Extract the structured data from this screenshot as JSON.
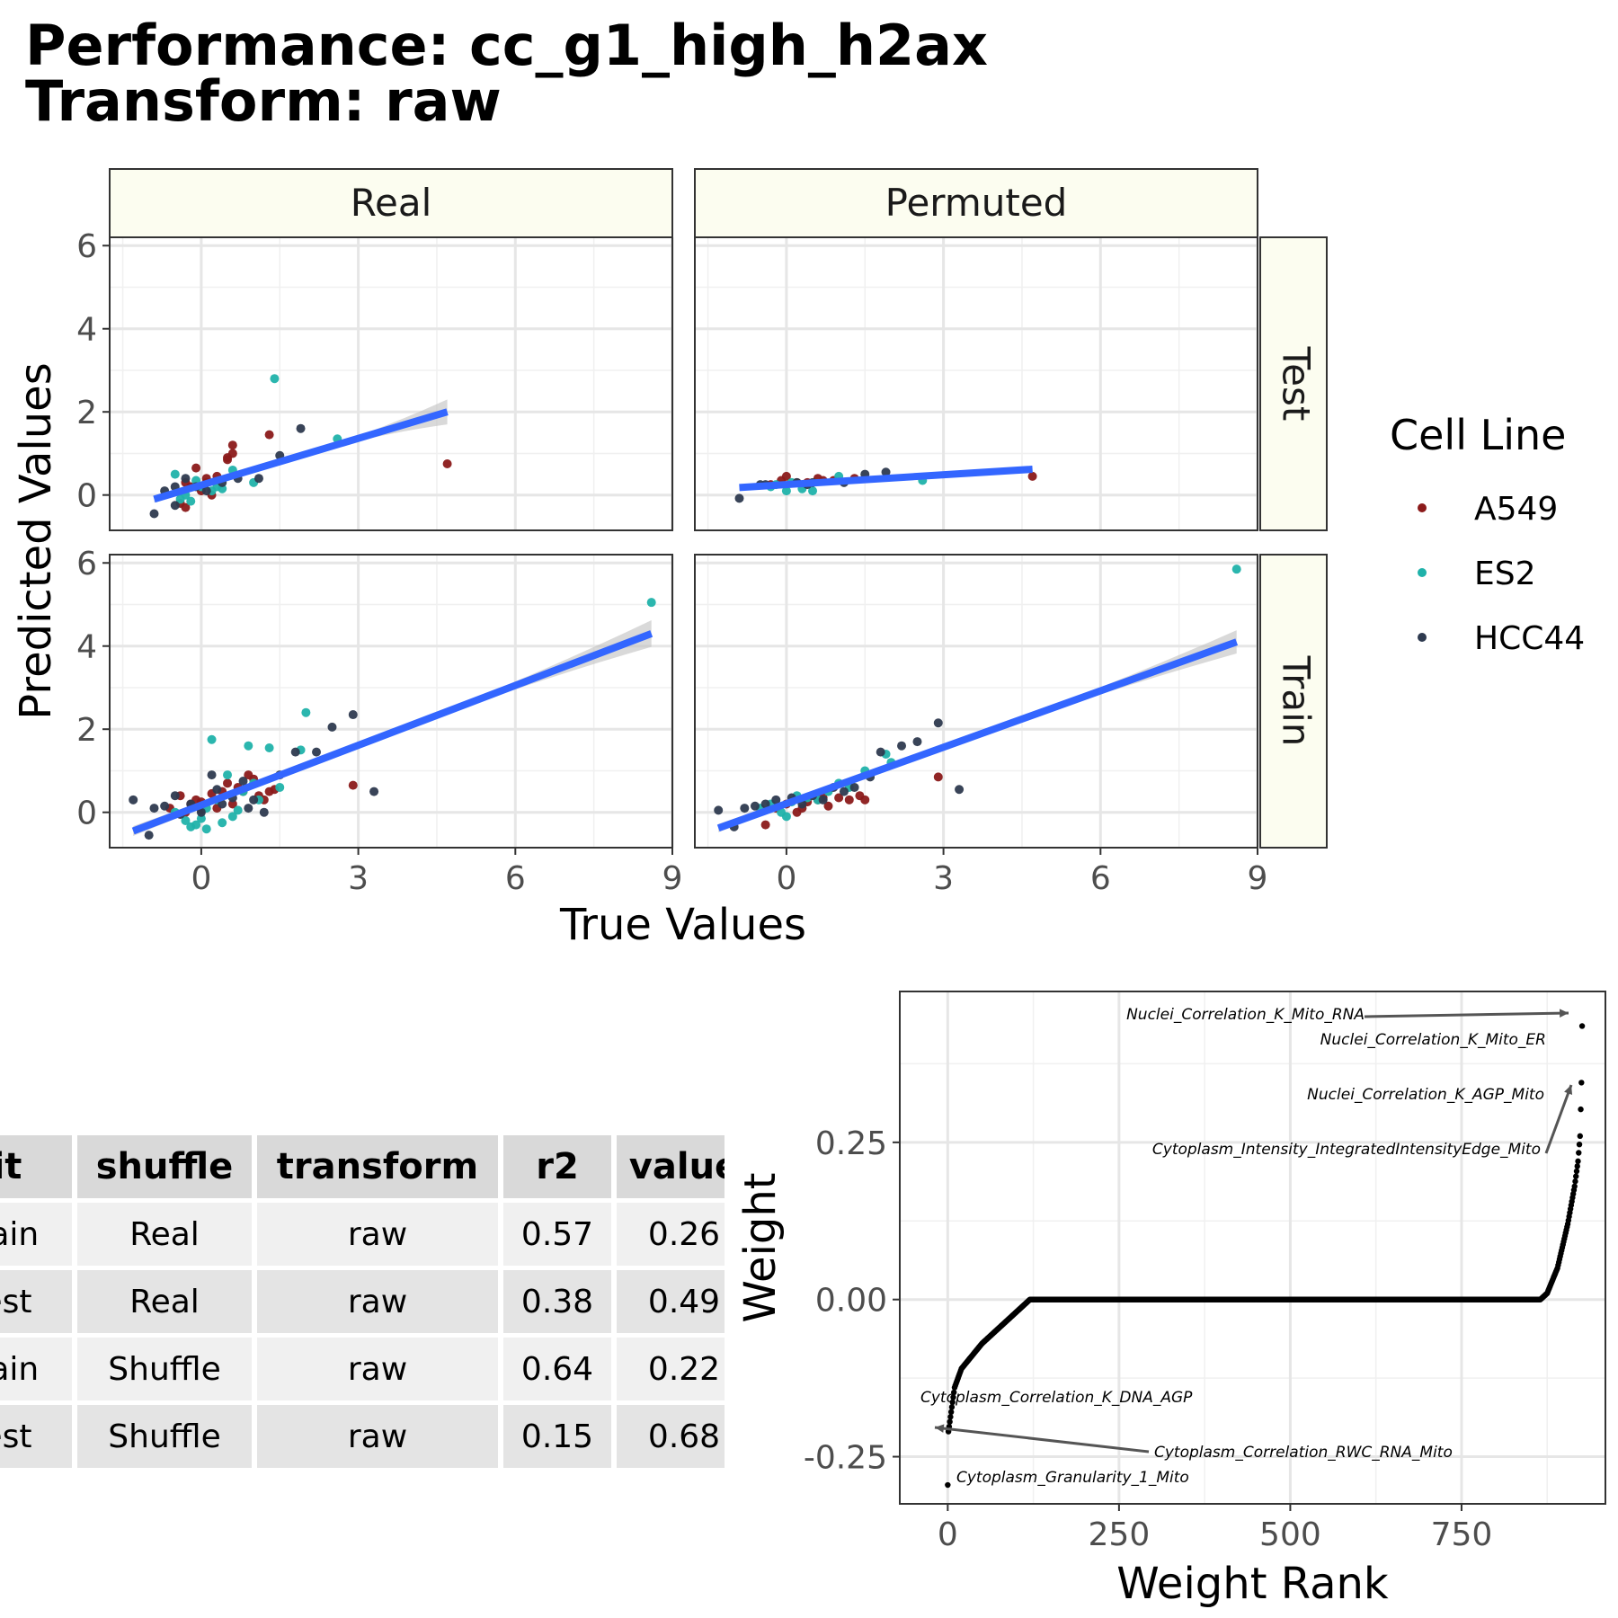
{
  "title": {
    "line1": "Performance: cc_g1_high_h2ax",
    "line2": "Transform: raw"
  },
  "colors": {
    "A549": "#8b1a1a",
    "ES2": "#20b2aa",
    "HCC44": "#2e3a4f",
    "fit_line": "#3366ff",
    "ribbon": "#bfbfbf",
    "strip_bg": "#fcfdf0"
  },
  "chart_data": [
    {
      "type": "scatter",
      "facets": {
        "columns": [
          "Real",
          "Permuted"
        ],
        "rows": [
          "Test",
          "Train"
        ]
      },
      "xlabel": "True Values",
      "ylabel": "Predicted Values",
      "xlim": [
        -1.75,
        9
      ],
      "ylim": [
        -0.85,
        6.2
      ],
      "x_ticks": [
        0,
        3,
        6,
        9
      ],
      "y_ticks": [
        0,
        2,
        4,
        6
      ],
      "grid": true,
      "legend": {
        "title": "Cell Line",
        "position": "right",
        "entries": [
          "A549",
          "ES2",
          "HCC44"
        ]
      },
      "panels": [
        {
          "col": "Real",
          "row": "Test",
          "fit": {
            "x0": -0.9,
            "y0": -0.1,
            "x1": 4.7,
            "y1": 2.0
          },
          "ribbon_halfwidth": [
            0.08,
            0.02,
            0.3
          ],
          "points": {
            "A549": [
              [
                -0.4,
                -0.2
              ],
              [
                -0.3,
                0.3
              ],
              [
                -0.2,
                0.2
              ],
              [
                -0.1,
                0.65
              ],
              [
                0.0,
                0.1
              ],
              [
                0.1,
                0.4
              ],
              [
                0.2,
                0.0
              ],
              [
                0.5,
                0.9
              ],
              [
                0.6,
                1.2
              ],
              [
                0.6,
                1.0
              ],
              [
                0.5,
                0.85
              ],
              [
                -0.3,
                -0.3
              ],
              [
                1.3,
                1.45
              ],
              [
                4.7,
                0.75
              ],
              [
                0.1,
                0.3
              ],
              [
                0.3,
                0.45
              ]
            ],
            "ES2": [
              [
                -0.5,
                0.5
              ],
              [
                -0.4,
                -0.1
              ],
              [
                -0.3,
                0.0
              ],
              [
                -0.2,
                -0.15
              ],
              [
                0.0,
                0.2
              ],
              [
                0.2,
                0.1
              ],
              [
                0.4,
                0.15
              ],
              [
                0.6,
                0.6
              ],
              [
                1.0,
                0.3
              ],
              [
                1.4,
                2.8
              ],
              [
                2.6,
                1.35
              ],
              [
                0.3,
                0.2
              ],
              [
                -0.1,
                0.35
              ]
            ],
            "HCC44": [
              [
                -0.9,
                -0.45
              ],
              [
                -0.7,
                0.1
              ],
              [
                -0.5,
                -0.25
              ],
              [
                -0.3,
                0.4
              ],
              [
                -0.1,
                0.2
              ],
              [
                0.1,
                0.1
              ],
              [
                0.7,
                0.4
              ],
              [
                1.1,
                0.4
              ],
              [
                1.5,
                0.95
              ],
              [
                1.9,
                1.6
              ],
              [
                0.4,
                0.3
              ],
              [
                -0.5,
                0.2
              ]
            ]
          }
        },
        {
          "col": "Permuted",
          "row": "Test",
          "fit": {
            "x0": -0.9,
            "y0": 0.18,
            "x1": 4.7,
            "y1": 0.62
          },
          "ribbon_halfwidth": [
            0.06,
            0.02,
            0.08
          ],
          "points": {
            "A549": [
              [
                -0.1,
                0.35
              ],
              [
                0.0,
                0.45
              ],
              [
                0.2,
                0.3
              ],
              [
                0.4,
                0.3
              ],
              [
                0.6,
                0.4
              ],
              [
                0.7,
                0.35
              ],
              [
                0.9,
                0.35
              ],
              [
                1.3,
                0.4
              ],
              [
                4.7,
                0.45
              ],
              [
                -0.3,
                0.25
              ]
            ],
            "ES2": [
              [
                -0.3,
                0.2
              ],
              [
                -0.2,
                0.25
              ],
              [
                0.0,
                0.1
              ],
              [
                0.3,
                0.15
              ],
              [
                0.5,
                0.1
              ],
              [
                1.0,
                0.45
              ],
              [
                2.6,
                0.35
              ],
              [
                0.1,
                0.3
              ]
            ],
            "HCC44": [
              [
                -0.9,
                -0.08
              ],
              [
                -0.5,
                0.25
              ],
              [
                -0.4,
                0.25
              ],
              [
                0.2,
                0.3
              ],
              [
                0.4,
                0.25
              ],
              [
                1.1,
                0.3
              ],
              [
                1.5,
                0.5
              ],
              [
                1.9,
                0.55
              ],
              [
                0.5,
                0.3
              ]
            ]
          }
        },
        {
          "col": "Real",
          "row": "Train",
          "fit": {
            "x0": -1.3,
            "y0": -0.45,
            "x1": 8.6,
            "y1": 4.3
          },
          "ribbon_halfwidth": [
            0.12,
            0.03,
            0.32
          ],
          "points": {
            "A549": [
              [
                -0.6,
                0.1
              ],
              [
                -0.4,
                0.4
              ],
              [
                -0.3,
                0.0
              ],
              [
                -0.1,
                0.3
              ],
              [
                0.0,
                0.25
              ],
              [
                0.2,
                0.45
              ],
              [
                0.4,
                0.5
              ],
              [
                0.5,
                0.7
              ],
              [
                0.6,
                0.2
              ],
              [
                0.8,
                0.5
              ],
              [
                0.9,
                0.9
              ],
              [
                1.0,
                0.8
              ],
              [
                1.1,
                0.4
              ],
              [
                1.3,
                0.5
              ],
              [
                1.4,
                0.55
              ],
              [
                2.9,
                0.65
              ],
              [
                0.3,
                0.1
              ],
              [
                0.7,
                0.6
              ],
              [
                0.0,
                0.05
              ],
              [
                -0.2,
                0.2
              ],
              [
                1.2,
                0.3
              ]
            ],
            "ES2": [
              [
                -0.5,
                0.0
              ],
              [
                -0.3,
                -0.2
              ],
              [
                -0.2,
                -0.35
              ],
              [
                -0.1,
                -0.3
              ],
              [
                0.0,
                -0.15
              ],
              [
                0.1,
                0.1
              ],
              [
                0.2,
                1.75
              ],
              [
                0.3,
                0.3
              ],
              [
                0.4,
                -0.25
              ],
              [
                0.5,
                0.9
              ],
              [
                0.6,
                -0.1
              ],
              [
                0.8,
                0.5
              ],
              [
                0.9,
                1.6
              ],
              [
                1.0,
                0.7
              ],
              [
                1.1,
                0.3
              ],
              [
                1.3,
                1.55
              ],
              [
                1.5,
                0.6
              ],
              [
                1.9,
                1.5
              ],
              [
                2.0,
                2.4
              ],
              [
                8.6,
                5.05
              ],
              [
                0.1,
                -0.4
              ],
              [
                0.7,
                0.05
              ]
            ],
            "HCC44": [
              [
                -1.3,
                0.3
              ],
              [
                -1.0,
                -0.55
              ],
              [
                -0.9,
                0.1
              ],
              [
                -0.7,
                0.15
              ],
              [
                -0.5,
                0.4
              ],
              [
                -0.4,
                -0.05
              ],
              [
                -0.2,
                0.2
              ],
              [
                0.0,
                0.0
              ],
              [
                0.2,
                0.9
              ],
              [
                0.4,
                0.2
              ],
              [
                0.6,
                0.35
              ],
              [
                0.8,
                0.75
              ],
              [
                1.0,
                0.3
              ],
              [
                1.2,
                0.0
              ],
              [
                1.5,
                0.9
              ],
              [
                1.8,
                1.45
              ],
              [
                2.2,
                1.45
              ],
              [
                2.5,
                2.05
              ],
              [
                2.9,
                2.35
              ],
              [
                3.3,
                0.5
              ],
              [
                0.3,
                0.55
              ],
              [
                0.9,
                0.1
              ]
            ]
          }
        },
        {
          "col": "Permuted",
          "row": "Train",
          "fit": {
            "x0": -1.3,
            "y0": -0.38,
            "x1": 8.6,
            "y1": 4.1
          },
          "ribbon_halfwidth": [
            0.1,
            0.03,
            0.28
          ],
          "points": {
            "A549": [
              [
                -0.4,
                -0.3
              ],
              [
                -0.2,
                0.1
              ],
              [
                0.0,
                0.2
              ],
              [
                0.2,
                0.0
              ],
              [
                0.4,
                0.25
              ],
              [
                0.6,
                0.3
              ],
              [
                0.8,
                0.15
              ],
              [
                1.0,
                0.35
              ],
              [
                1.2,
                0.3
              ],
              [
                1.4,
                0.4
              ],
              [
                2.9,
                0.85
              ],
              [
                0.3,
                0.1
              ],
              [
                0.7,
                0.35
              ],
              [
                1.5,
                0.3
              ]
            ],
            "ES2": [
              [
                -0.5,
                0.1
              ],
              [
                -0.3,
                0.2
              ],
              [
                -0.1,
                0.0
              ],
              [
                0.0,
                -0.1
              ],
              [
                0.2,
                0.4
              ],
              [
                0.4,
                0.35
              ],
              [
                0.6,
                0.3
              ],
              [
                0.8,
                0.5
              ],
              [
                1.0,
                0.7
              ],
              [
                1.2,
                0.6
              ],
              [
                1.5,
                1.0
              ],
              [
                1.9,
                1.4
              ],
              [
                2.0,
                1.2
              ],
              [
                8.6,
                5.85
              ],
              [
                0.1,
                0.25
              ]
            ],
            "HCC44": [
              [
                -1.3,
                0.05
              ],
              [
                -1.0,
                -0.35
              ],
              [
                -0.8,
                0.1
              ],
              [
                -0.6,
                0.15
              ],
              [
                -0.4,
                0.2
              ],
              [
                -0.2,
                0.3
              ],
              [
                0.1,
                0.35
              ],
              [
                0.3,
                0.2
              ],
              [
                0.5,
                0.4
              ],
              [
                0.9,
                0.6
              ],
              [
                1.1,
                0.5
              ],
              [
                1.3,
                0.6
              ],
              [
                1.6,
                0.85
              ],
              [
                1.8,
                1.45
              ],
              [
                2.2,
                1.6
              ],
              [
                2.5,
                1.7
              ],
              [
                2.9,
                2.15
              ],
              [
                3.3,
                0.55
              ],
              [
                0.7,
                0.3
              ]
            ]
          }
        }
      ]
    },
    {
      "type": "table",
      "columns": [
        "fit",
        "shuffle",
        "transform",
        "r2",
        "value"
      ],
      "rows": [
        [
          "Train",
          "Real",
          "raw",
          "0.57",
          "0.26"
        ],
        [
          "Test",
          "Real",
          "raw",
          "0.38",
          "0.49"
        ],
        [
          "Train",
          "Shuffle",
          "raw",
          "0.64",
          "0.22"
        ],
        [
          "Test",
          "Shuffle",
          "raw",
          "0.15",
          "0.68"
        ]
      ]
    },
    {
      "type": "scatter",
      "xlabel": "Weight Rank",
      "ylabel": "Weight",
      "xlim": [
        -70,
        960
      ],
      "ylim": [
        -0.325,
        0.49
      ],
      "x_ticks": [
        0,
        250,
        500,
        750
      ],
      "y_ticks": [
        -0.25,
        0.0,
        0.25
      ],
      "y_tick_labels": [
        "-0.25",
        "0.00",
        "0.25"
      ],
      "grid": true,
      "n_features": 926,
      "curve_knots": [
        [
          0,
          -0.295
        ],
        [
          1,
          -0.21
        ],
        [
          10,
          -0.14
        ],
        [
          20,
          -0.11
        ],
        [
          50,
          -0.07
        ],
        [
          80,
          -0.04
        ],
        [
          110,
          -0.01
        ],
        [
          120,
          0.0
        ],
        [
          865,
          0.0
        ],
        [
          875,
          0.01
        ],
        [
          890,
          0.05
        ],
        [
          905,
          0.12
        ],
        [
          915,
          0.18
        ],
        [
          920,
          0.22
        ],
        [
          923,
          0.26
        ],
        [
          925,
          0.345
        ],
        [
          926,
          0.435
        ]
      ],
      "annotations": [
        {
          "label": "Nuclei_Correlation_K_Mito_RNA",
          "x": 926,
          "y": 0.435,
          "arrow": true
        },
        {
          "label": "Nuclei_Correlation_K_Mito_ER",
          "x": 926,
          "y": 0.415,
          "arrow": false
        },
        {
          "label": "Nuclei_Correlation_K_AGP_Mito",
          "x": 925,
          "y": 0.345,
          "arrow": true
        },
        {
          "label": "Cytoplasm_Intensity_IntegratedIntensityEdge_Mito",
          "x": 923,
          "y": 0.26,
          "arrow": false
        },
        {
          "label": "Cytoplasm_Correlation_K_DNA_AGP",
          "x": 2,
          "y": -0.185,
          "arrow": false
        },
        {
          "label": "Cytoplasm_Correlation_RWC_RNA_Mito",
          "x": 1,
          "y": -0.21,
          "arrow": true
        },
        {
          "label": "Cytoplasm_Granularity_1_Mito",
          "x": 0,
          "y": -0.295,
          "arrow": false
        }
      ]
    }
  ]
}
